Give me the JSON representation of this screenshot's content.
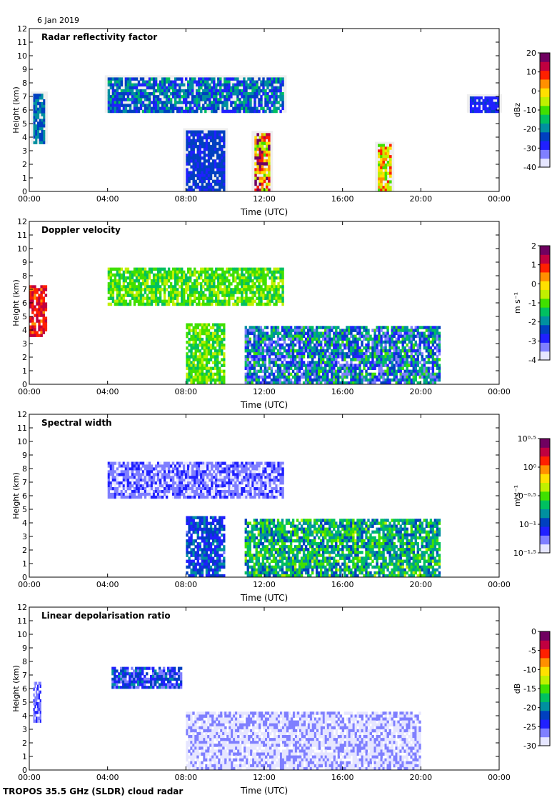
{
  "header": {
    "date": "6 Jan 2019"
  },
  "footer": {
    "caption": "TROPOS 35.5 GHz (SLDR) cloud radar"
  },
  "colors": {
    "missing_gray": "#d2d2d2",
    "colormap": [
      "#e6e6ff",
      "#7f7fff",
      "#2020ff",
      "#0040c0",
      "#0090a0",
      "#00c060",
      "#40e000",
      "#c0f000",
      "#ffe000",
      "#ff9000",
      "#ff2000",
      "#c00040",
      "#700060"
    ]
  },
  "chart_data": [
    {
      "type": "heatmap",
      "title": "Radar reflectivity factor",
      "xlabel": "Time (UTC)",
      "ylabel": "Height (km)",
      "x_ticks": [
        "00:00",
        "04:00",
        "08:00",
        "12:00",
        "16:00",
        "20:00",
        "00:00"
      ],
      "xlim_hours": [
        0,
        24
      ],
      "ylim": [
        0,
        12
      ],
      "y_ticks": [
        "0",
        "1",
        "2",
        "3",
        "4",
        "5",
        "6",
        "7",
        "8",
        "9",
        "10",
        "11",
        "12"
      ],
      "colorbar": {
        "label": "dBz",
        "min": -40,
        "max": 20,
        "ticks": [
          "20",
          "10",
          "0",
          "-10",
          "-20",
          "-30",
          "-40"
        ]
      },
      "features": [
        {
          "name": "upper cloud layer",
          "t": [
            4.0,
            13.0
          ],
          "h": [
            5.8,
            8.4
          ],
          "values": [
            -30,
            -15
          ]
        },
        {
          "name": "early low layer",
          "t": [
            0.2,
            0.8
          ],
          "h": [
            3.5,
            7.2
          ],
          "values": [
            -25,
            -18
          ]
        },
        {
          "name": "mid-level cloud",
          "t": [
            8.0,
            10.0
          ],
          "h": [
            0,
            4.5
          ],
          "values": [
            -28,
            -22
          ]
        },
        {
          "name": "precipitation core",
          "t": [
            11.5,
            12.3
          ],
          "h": [
            0,
            4.3
          ],
          "values": [
            -10,
            20
          ]
        },
        {
          "name": "precipitation core",
          "t": [
            17.8,
            18.5
          ],
          "h": [
            0,
            3.5
          ],
          "values": [
            -10,
            10
          ]
        },
        {
          "name": "late high cloud",
          "t": [
            22.5,
            24.0
          ],
          "h": [
            5.8,
            7.0
          ],
          "values": [
            -30,
            -25
          ]
        }
      ]
    },
    {
      "type": "heatmap",
      "title": "Doppler velocity",
      "xlabel": "Time (UTC)",
      "ylabel": "Height (km)",
      "x_ticks": [
        "00:00",
        "04:00",
        "08:00",
        "12:00",
        "16:00",
        "20:00",
        "00:00"
      ],
      "xlim_hours": [
        0,
        24
      ],
      "ylim": [
        0,
        12
      ],
      "y_ticks": [
        "0",
        "1",
        "2",
        "3",
        "4",
        "5",
        "6",
        "7",
        "8",
        "9",
        "10",
        "11",
        "12"
      ],
      "colorbar": {
        "label": "m s⁻¹",
        "min": -4,
        "max": 2,
        "ticks": [
          "2",
          "1",
          "0",
          "-1",
          "-2",
          "-3",
          "-4"
        ]
      },
      "features": [
        {
          "name": "upper cloud layer",
          "t": [
            4.0,
            13.0
          ],
          "h": [
            5.8,
            8.6
          ],
          "values": [
            -1.5,
            -0.5
          ]
        },
        {
          "name": "early low layer",
          "t": [
            0.0,
            0.9
          ],
          "h": [
            3.5,
            7.3
          ],
          "values": [
            0.5,
            1.5
          ]
        },
        {
          "name": "mid-level cloud",
          "t": [
            8.0,
            10.0
          ],
          "h": [
            0,
            4.5
          ],
          "values": [
            -1.5,
            -0.5
          ]
        },
        {
          "name": "precipitation",
          "t": [
            11.0,
            21.0
          ],
          "h": [
            0,
            4.3
          ],
          "values": [
            -3.5,
            -1.0
          ]
        }
      ]
    },
    {
      "type": "heatmap",
      "title": "Spectral width",
      "xlabel": "Time (UTC)",
      "ylabel": "Height (km)",
      "x_ticks": [
        "00:00",
        "04:00",
        "08:00",
        "12:00",
        "16:00",
        "20:00",
        "00:00"
      ],
      "xlim_hours": [
        0,
        24
      ],
      "ylim": [
        0,
        12
      ],
      "y_ticks": [
        "0",
        "1",
        "2",
        "3",
        "4",
        "5",
        "6",
        "7",
        "8",
        "9",
        "10",
        "11",
        "12"
      ],
      "colorbar": {
        "label": "m s⁻¹",
        "min": -1.5,
        "max": 0.5,
        "log": true,
        "ticks": [
          "10⁰·⁵",
          "10⁰",
          "10⁻⁰·⁵",
          "10⁻¹",
          "10⁻¹·⁵"
        ]
      },
      "features": [
        {
          "name": "upper cloud layer",
          "t": [
            4.0,
            13.0
          ],
          "h": [
            5.8,
            8.5
          ],
          "values": [
            -1.4,
            -1.1
          ]
        },
        {
          "name": "mid-level cloud",
          "t": [
            8.0,
            10.0
          ],
          "h": [
            0,
            4.5
          ],
          "values": [
            -1.2,
            -0.8
          ]
        },
        {
          "name": "precipitation",
          "t": [
            11.0,
            21.0
          ],
          "h": [
            0,
            4.3
          ],
          "values": [
            -1.0,
            -0.4
          ]
        }
      ]
    },
    {
      "type": "heatmap",
      "title": "Linear depolarisation ratio",
      "xlabel": "Time (UTC)",
      "ylabel": "Height (km)",
      "x_ticks": [
        "00:00",
        "04:00",
        "08:00",
        "12:00",
        "16:00",
        "20:00",
        "00:00"
      ],
      "xlim_hours": [
        0,
        24
      ],
      "ylim": [
        0,
        12
      ],
      "y_ticks": [
        "0",
        "1",
        "2",
        "3",
        "4",
        "5",
        "6",
        "7",
        "8",
        "9",
        "10",
        "11",
        "12"
      ],
      "colorbar": {
        "label": "dB",
        "min": -30,
        "max": 0,
        "ticks": [
          "0",
          "-5",
          "-10",
          "-15",
          "-20",
          "-25",
          "-30"
        ]
      },
      "features": [
        {
          "name": "upper cloud layer",
          "t": [
            4.2,
            7.8
          ],
          "h": [
            6.0,
            7.6
          ],
          "values": [
            -27,
            -20
          ]
        },
        {
          "name": "early low layer",
          "t": [
            0.2,
            0.6
          ],
          "h": [
            3.5,
            6.5
          ],
          "values": [
            -28,
            -24
          ]
        },
        {
          "name": "precipitation",
          "t": [
            8.0,
            20.0
          ],
          "h": [
            0,
            4.3
          ],
          "values": [
            -30,
            -26
          ]
        }
      ]
    }
  ]
}
